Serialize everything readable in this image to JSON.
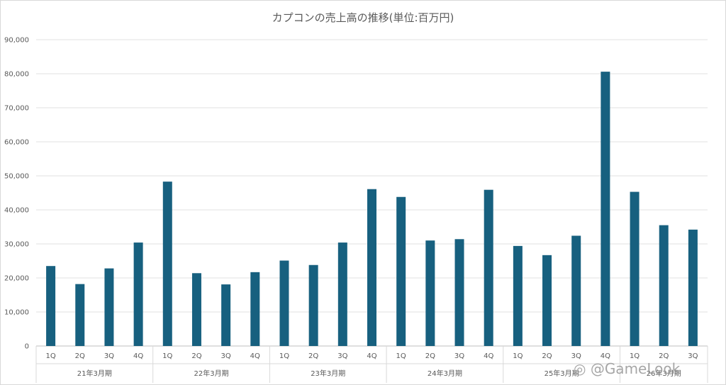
{
  "chart_data": {
    "type": "bar",
    "title": "カプコンの売上高の推移(単位:百万円)",
    "xlabel": "",
    "ylabel": "",
    "ylim": [
      0,
      90000
    ],
    "yticks": [
      0,
      10000,
      20000,
      30000,
      40000,
      50000,
      60000,
      70000,
      80000,
      90000
    ],
    "ytick_labels": [
      "0",
      "10,000",
      "20,000",
      "30,000",
      "40,000",
      "50,000",
      "60,000",
      "70,000",
      "80,000",
      "90,000"
    ],
    "grid": true,
    "legend": "none",
    "bar_color": "#17607f",
    "groups": [
      {
        "label": "21年3月期",
        "categories": [
          "1Q",
          "2Q",
          "3Q",
          "4Q"
        ],
        "values": [
          23500,
          18200,
          22800,
          30400
        ]
      },
      {
        "label": "22年3月期",
        "categories": [
          "1Q",
          "2Q",
          "3Q",
          "4Q"
        ],
        "values": [
          48300,
          21400,
          18100,
          21700
        ]
      },
      {
        "label": "23年3月期",
        "categories": [
          "1Q",
          "2Q",
          "3Q",
          "4Q"
        ],
        "values": [
          25100,
          23800,
          30400,
          46100
        ]
      },
      {
        "label": "24年3月期",
        "categories": [
          "1Q",
          "2Q",
          "3Q",
          "4Q"
        ],
        "values": [
          43800,
          31000,
          31400,
          45900
        ]
      },
      {
        "label": "25年3月期",
        "categories": [
          "1Q",
          "2Q",
          "3Q",
          "4Q"
        ],
        "values": [
          29400,
          26700,
          32400,
          80600
        ]
      },
      {
        "label": "26年3月期",
        "categories": [
          "1Q",
          "2Q",
          "3Q"
        ],
        "values": [
          45300,
          35500,
          34200
        ]
      }
    ]
  },
  "watermark": {
    "text": "@GameLook"
  }
}
